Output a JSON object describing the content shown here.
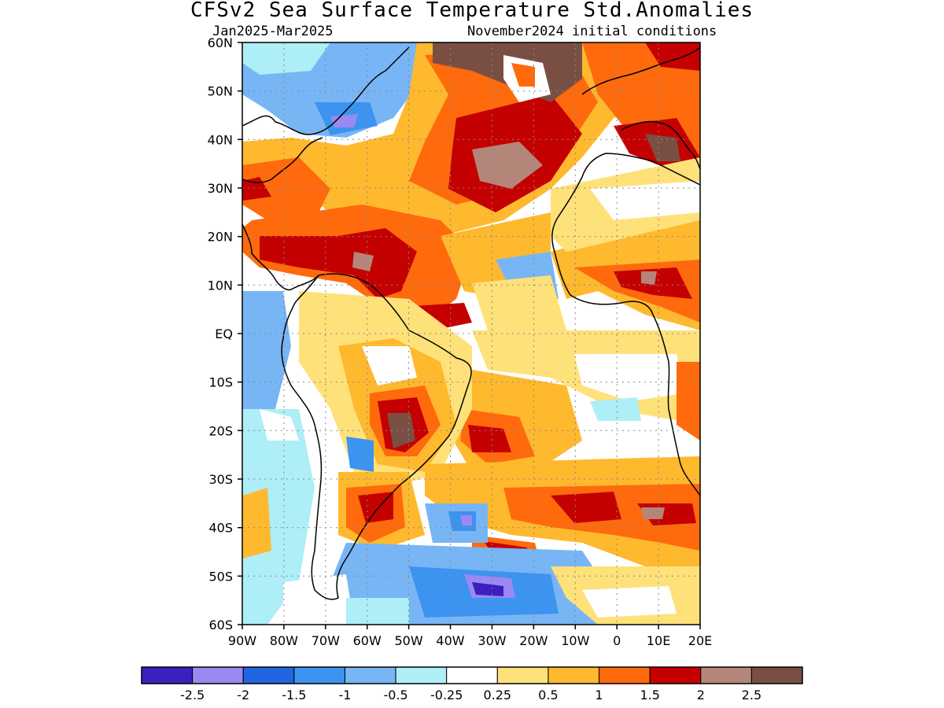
{
  "title": "CFSv2 Sea Surface Temperature Std.Anomalies",
  "period": "Jan2025-Mar2025",
  "init": "November2024 initial conditions",
  "map": {
    "region": "Atlantic Ocean and South America",
    "lon_range": [
      -90,
      20
    ],
    "lat_range": [
      -60,
      60
    ],
    "lat_labels": [
      "60N",
      "50N",
      "40N",
      "30N",
      "20N",
      "10N",
      "EQ",
      "10S",
      "20S",
      "30S",
      "40S",
      "50S",
      "60S"
    ],
    "lon_labels": [
      "90W",
      "80W",
      "70W",
      "60W",
      "50W",
      "40W",
      "30W",
      "20W",
      "10W",
      "0",
      "10E",
      "20E"
    ],
    "gridlines": "dotted"
  },
  "colorbar": {
    "labels": [
      "-2.5",
      "-2",
      "-1.5",
      "-1",
      "-0.5",
      "-0.25",
      "0.25",
      "0.5",
      "1",
      "1.5",
      "2",
      "2.5"
    ],
    "colors": [
      "#3b1fbf",
      "#9c88f2",
      "#2166e0",
      "#3c93f0",
      "#78b5f5",
      "#aeeef7",
      "#ffffff",
      "#ffe17a",
      "#ffb92e",
      "#ff6a0d",
      "#c40000",
      "#b38679",
      "#7a4f43"
    ]
  }
}
